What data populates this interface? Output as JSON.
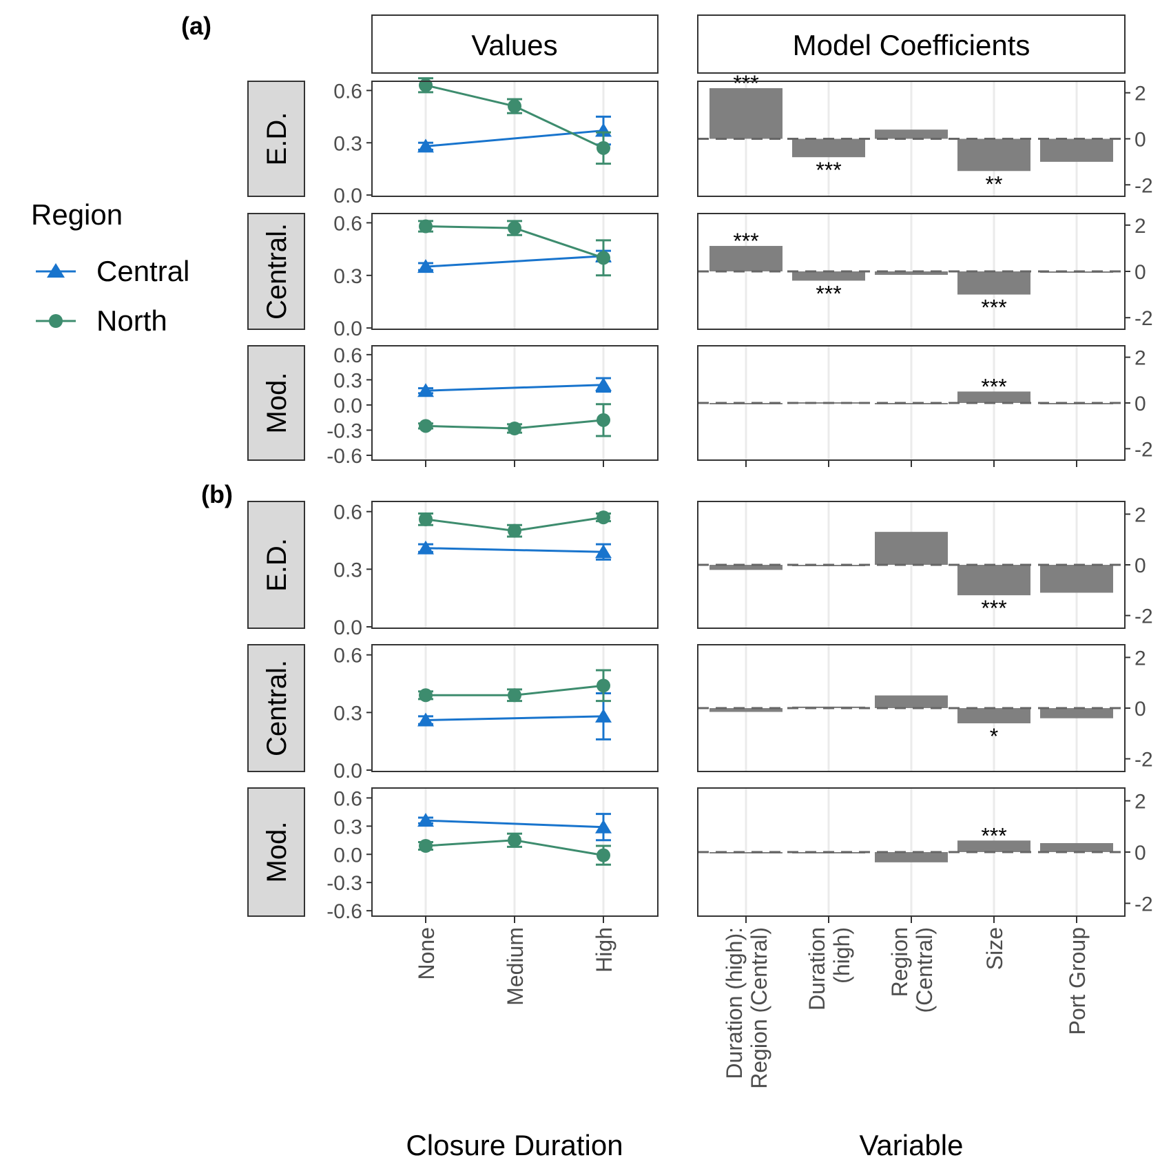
{
  "panel_labels": [
    "(a)",
    "(b)"
  ],
  "col_headers": {
    "values": "Values",
    "coefs": "Model Coefficients"
  },
  "row_labels": [
    "E.D.",
    "Central.",
    "Mod."
  ],
  "legend": {
    "title": "Region",
    "items": [
      {
        "name": "Central",
        "color": "#1874CD",
        "shape": "triangle"
      },
      {
        "name": "North",
        "color": "#3D8C6E",
        "shape": "circle"
      }
    ]
  },
  "xlabels": {
    "values": "Closure Duration",
    "coefs": "Variable"
  },
  "colors": {
    "central": "#1874CD",
    "north": "#3D8C6E",
    "bar": "#808080",
    "strip": "#D9D9D9",
    "zero_line": "#666666"
  },
  "chart_data": [
    {
      "type": "line",
      "group": "(a)",
      "x": [
        "None",
        "Medium",
        "High"
      ],
      "xlabel": "Closure Duration",
      "rows": [
        {
          "label": "E.D.",
          "ylim": [
            0.0,
            0.6
          ],
          "yticks": [
            "0.0",
            "0.3",
            "0.6"
          ],
          "series": [
            {
              "name": "Central",
              "values": [
                0.28,
                null,
                0.37
              ],
              "err": [
                0.02,
                null,
                0.08
              ]
            },
            {
              "name": "North",
              "values": [
                0.63,
                0.51,
                0.27
              ],
              "err": [
                0.04,
                0.04,
                0.09
              ]
            }
          ]
        },
        {
          "label": "Central.",
          "ylim": [
            0.0,
            0.6
          ],
          "yticks": [
            "0.0",
            "0.3",
            "0.6"
          ],
          "series": [
            {
              "name": "Central",
              "values": [
                0.35,
                null,
                0.41
              ],
              "err": [
                0.02,
                null,
                0.03
              ]
            },
            {
              "name": "North",
              "values": [
                0.58,
                0.57,
                0.4
              ],
              "err": [
                0.03,
                0.04,
                0.1
              ]
            }
          ]
        },
        {
          "label": "Mod.",
          "ylim": [
            -0.6,
            0.6
          ],
          "yticks": [
            "-0.6",
            "-0.3",
            "0.0",
            "0.3",
            "0.6"
          ],
          "series": [
            {
              "name": "Central",
              "values": [
                0.17,
                null,
                0.24
              ],
              "err": [
                0.03,
                null,
                0.08
              ]
            },
            {
              "name": "North",
              "values": [
                -0.25,
                -0.28,
                -0.18
              ],
              "err": [
                0.03,
                0.05,
                0.19
              ]
            }
          ]
        }
      ]
    },
    {
      "type": "bar",
      "group": "(a)",
      "categories": [
        "Duration (high):\nRegion (Central)",
        "Duration\n(high)",
        "Region\n(Central)",
        "Size",
        "Port Group"
      ],
      "xlabel": "Variable",
      "ylim": [
        -2.5,
        2.5
      ],
      "yticks": [
        "-2",
        "0",
        "2"
      ],
      "rows": [
        {
          "label": "E.D.",
          "values": [
            2.2,
            -0.8,
            0.4,
            -1.4,
            -1.0
          ],
          "sig": [
            "***",
            "***",
            "",
            "**",
            ""
          ]
        },
        {
          "label": "Central.",
          "values": [
            1.1,
            -0.4,
            -0.15,
            -1.0,
            0.0
          ],
          "sig": [
            "***",
            "***",
            "",
            "***",
            ""
          ]
        },
        {
          "label": "Mod.",
          "values": [
            0.0,
            0.03,
            0.0,
            0.5,
            0.0
          ],
          "sig": [
            "",
            "",
            "",
            "***",
            ""
          ]
        }
      ]
    },
    {
      "type": "line",
      "group": "(b)",
      "x": [
        "None",
        "Medium",
        "High"
      ],
      "xlabel": "Closure Duration",
      "rows": [
        {
          "label": "E.D.",
          "ylim": [
            0.0,
            0.6
          ],
          "yticks": [
            "0.0",
            "0.3",
            "0.6"
          ],
          "series": [
            {
              "name": "Central",
              "values": [
                0.41,
                null,
                0.39
              ],
              "err": [
                0.02,
                null,
                0.04
              ]
            },
            {
              "name": "North",
              "values": [
                0.56,
                0.5,
                0.57
              ],
              "err": [
                0.03,
                0.03,
                0.02
              ]
            }
          ]
        },
        {
          "label": "Central.",
          "ylim": [
            0.0,
            0.6
          ],
          "yticks": [
            "0.0",
            "0.3",
            "0.6"
          ],
          "series": [
            {
              "name": "Central",
              "values": [
                0.26,
                null,
                0.28
              ],
              "err": [
                0.02,
                null,
                0.12
              ]
            },
            {
              "name": "North",
              "values": [
                0.39,
                0.39,
                0.44
              ],
              "err": [
                0.02,
                0.03,
                0.08
              ]
            }
          ]
        },
        {
          "label": "Mod.",
          "ylim": [
            -0.6,
            0.6
          ],
          "yticks": [
            "-0.6",
            "-0.3",
            "0.0",
            "0.3",
            "0.6"
          ],
          "series": [
            {
              "name": "Central",
              "values": [
                0.36,
                null,
                0.29
              ],
              "err": [
                0.03,
                null,
                0.14
              ]
            },
            {
              "name": "North",
              "values": [
                0.09,
                0.15,
                -0.01
              ],
              "err": [
                0.04,
                0.07,
                0.1
              ]
            }
          ]
        }
      ]
    },
    {
      "type": "bar",
      "group": "(b)",
      "categories": [
        "Duration (high):\nRegion (Central)",
        "Duration\n(high)",
        "Region\n(Central)",
        "Size",
        "Port Group"
      ],
      "xlabel": "Variable",
      "ylim": [
        -2.5,
        2.5
      ],
      "yticks": [
        "-2",
        "0",
        "2"
      ],
      "rows": [
        {
          "label": "E.D.",
          "values": [
            -0.2,
            0.0,
            1.3,
            -1.2,
            -1.1
          ],
          "sig": [
            "",
            "",
            "",
            "***",
            ""
          ]
        },
        {
          "label": "Central.",
          "values": [
            -0.15,
            0.06,
            0.5,
            -0.6,
            -0.4
          ],
          "sig": [
            "",
            "",
            "",
            "*",
            ""
          ]
        },
        {
          "label": "Mod.",
          "values": [
            0.0,
            0.0,
            -0.4,
            0.45,
            0.35
          ],
          "sig": [
            "",
            "",
            "",
            "***",
            ""
          ]
        }
      ]
    }
  ]
}
